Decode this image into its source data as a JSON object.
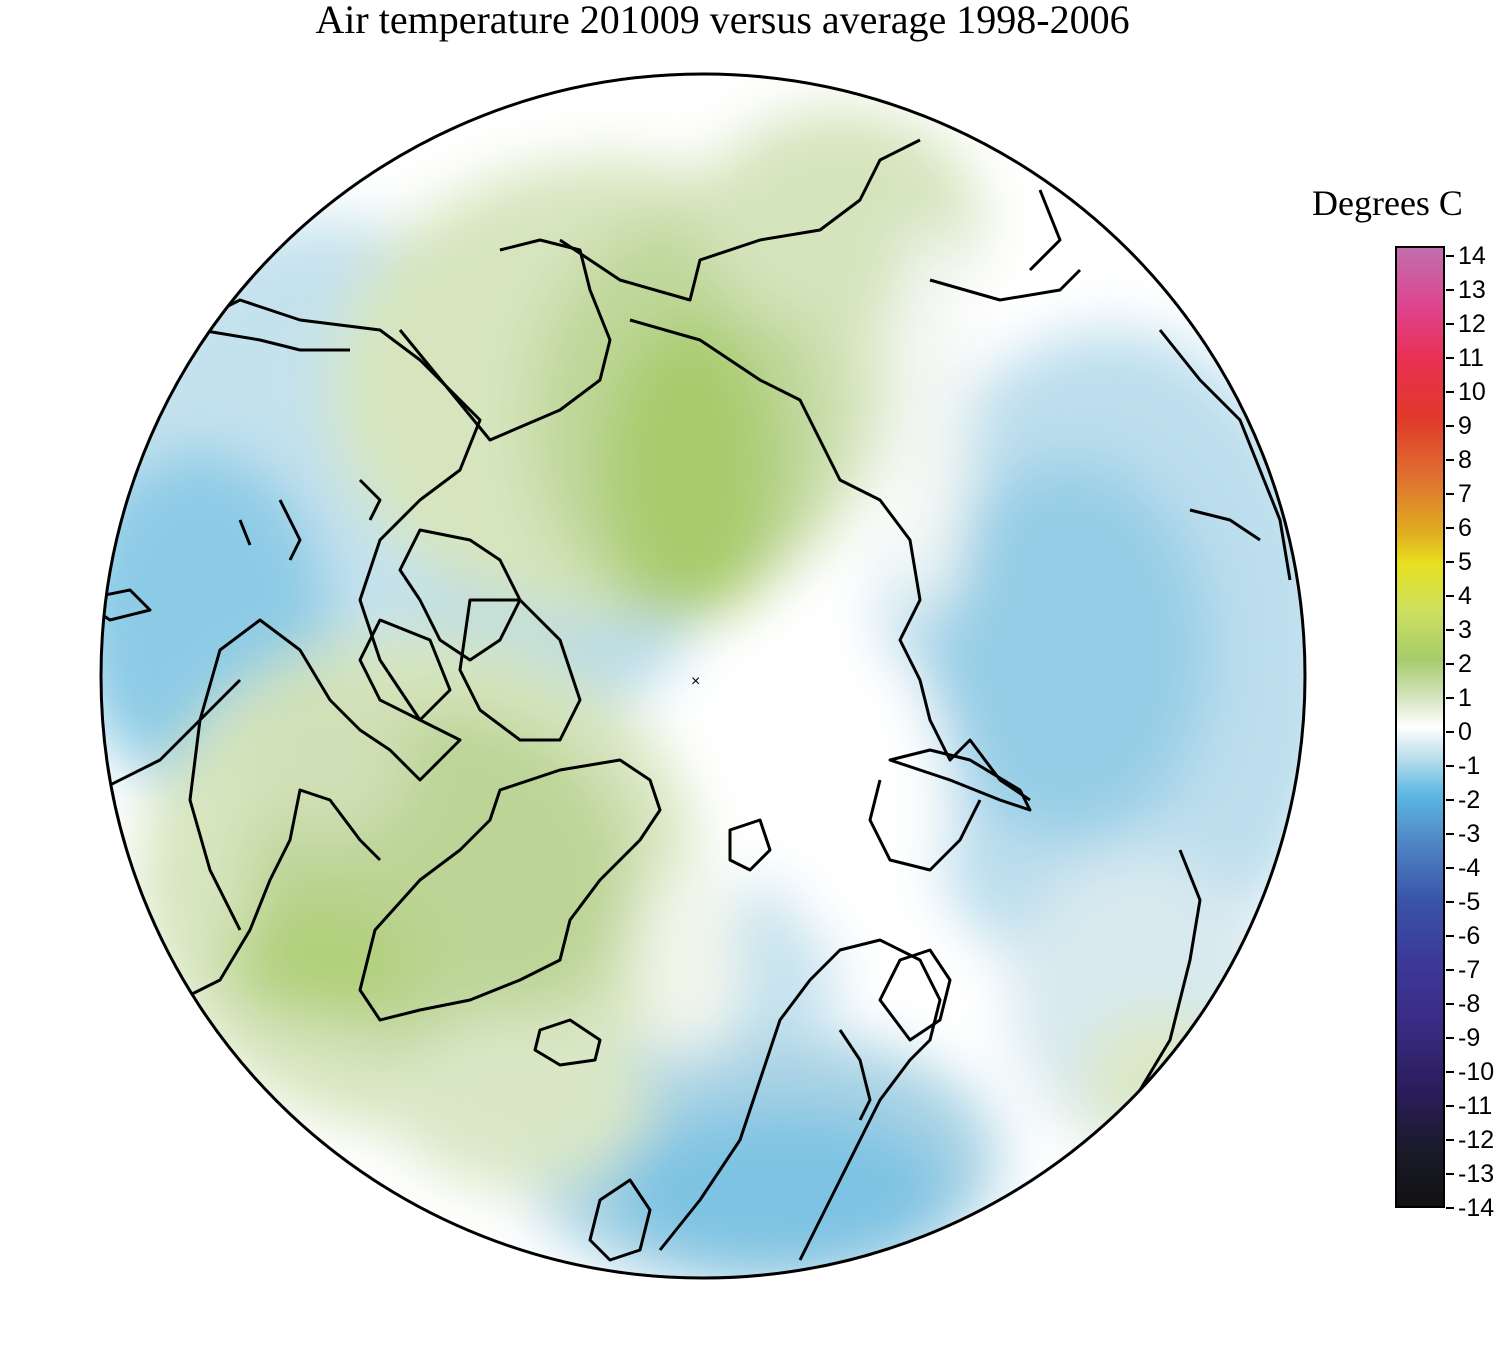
{
  "title": "Air temperature 201009 versus average 1998-2006",
  "legend": {
    "title": "Degrees C",
    "ticks": [
      "14",
      "13",
      "12",
      "11",
      "10",
      "9",
      "8",
      "7",
      "6",
      "5",
      "4",
      "3",
      "2",
      "1",
      "0",
      "-1",
      "-2",
      "-3",
      "-4",
      "-5",
      "-6",
      "-7",
      "-8",
      "-9",
      "-10",
      "-11",
      "-12",
      "-13",
      "-14"
    ],
    "min": -14,
    "max": 14
  },
  "colors": {
    "pos1": "#e9efde",
    "pos2": "#c9dcaa",
    "pos3": "#a6cb6a",
    "neg1": "#d8e9ef",
    "neg2": "#a9d3e4",
    "neg3": "#6ebfe2",
    "coast": "#000000"
  }
}
